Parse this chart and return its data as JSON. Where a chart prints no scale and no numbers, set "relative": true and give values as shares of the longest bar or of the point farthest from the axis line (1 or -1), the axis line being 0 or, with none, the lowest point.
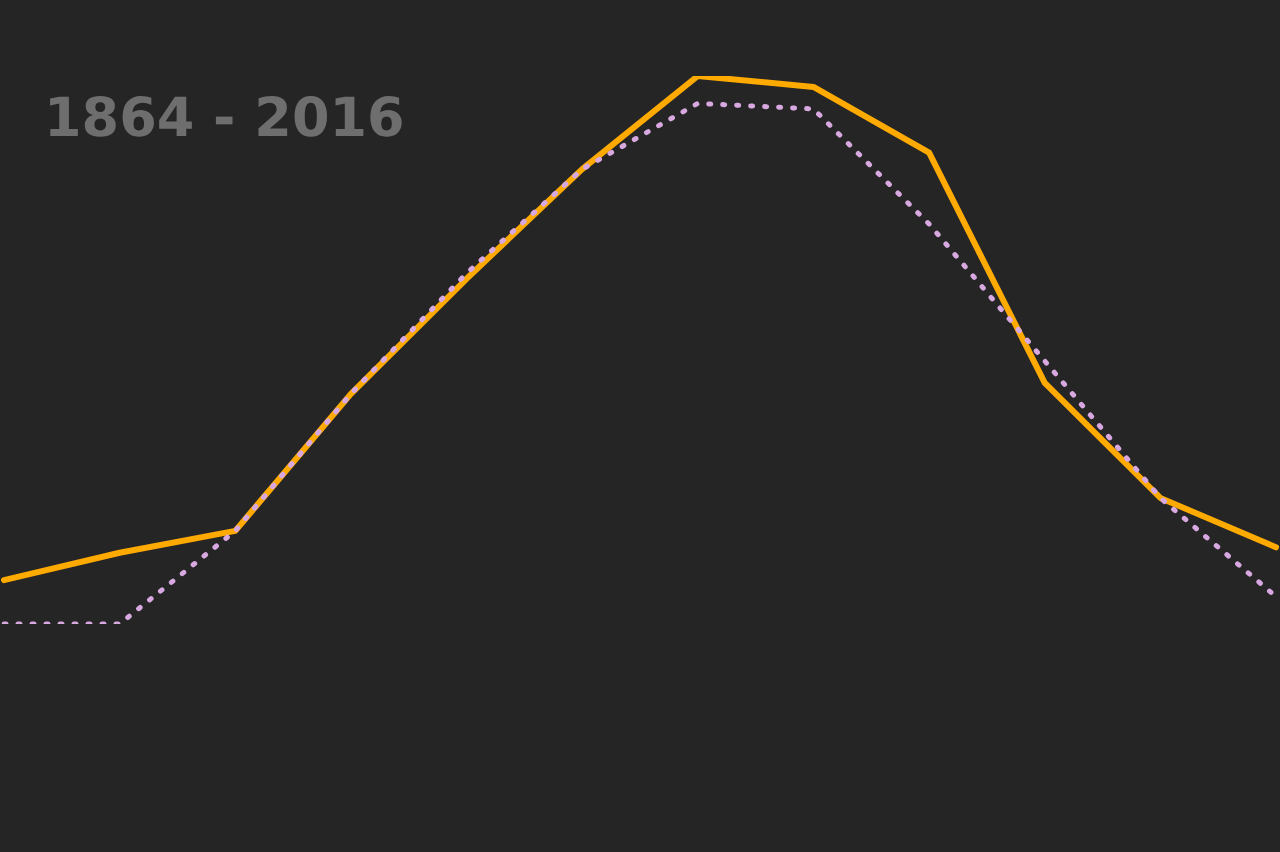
{
  "chart_data": {
    "type": "line",
    "title": "1864 - 2016",
    "relative": true,
    "categories": [
      null,
      null,
      null,
      null,
      null,
      null,
      null,
      null,
      null,
      null,
      null,
      null
    ],
    "marker": "none",
    "series": [
      {
        "color": "#ffaa00",
        "line_style": "solid",
        "values": [
          0.08,
          0.13,
          0.17,
          0.42,
          0.63,
          0.83,
          1,
          0.98,
          0.86,
          0.44,
          0.23,
          0.14
        ]
      },
      {
        "color": "#d8a8e0",
        "line_style": "dotted",
        "values": [
          0,
          0,
          0.17,
          0.42,
          0.64,
          0.83,
          0.95,
          0.94,
          0.73,
          0.48,
          0.23,
          0.05
        ]
      }
    ]
  }
}
